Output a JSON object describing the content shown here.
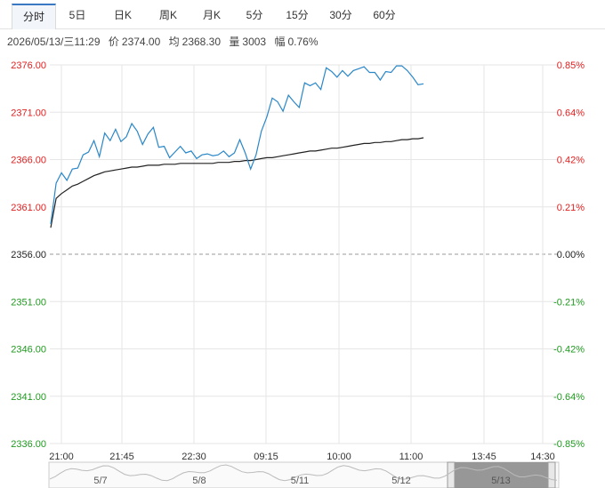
{
  "tabs": [
    {
      "label": "分时",
      "active": true
    },
    {
      "label": "5日",
      "active": false
    },
    {
      "label": "日K",
      "active": false
    },
    {
      "label": "周K",
      "active": false
    },
    {
      "label": "月K",
      "active": false
    },
    {
      "label": "5分",
      "active": false
    },
    {
      "label": "15分",
      "active": false
    },
    {
      "label": "30分",
      "active": false
    },
    {
      "label": "60分",
      "active": false
    }
  ],
  "info": {
    "datetime": "2026/05/13/三11:29",
    "price_label": "价",
    "price": "2374.00",
    "avg_label": "均",
    "avg": "2368.30",
    "vol_label": "量",
    "vol": "3003",
    "change_label": "幅",
    "change": "0.76%"
  },
  "colors": {
    "price_line": "#2a87c8",
    "avg_line": "#222222",
    "up": "#e02020",
    "down": "#1f9a1f",
    "base": "#222222",
    "grid": "#e6e6e6",
    "nav_fill": "#8c8c8c"
  },
  "chart_data": {
    "type": "line",
    "base_price": 2356,
    "ylim": [
      2336,
      2376
    ],
    "y_ticks_left": [
      "2376.00",
      "2371.00",
      "2366.00",
      "2361.00",
      "2356.00",
      "2351.00",
      "2346.00",
      "2341.00",
      "2336.00"
    ],
    "y_ticks_right": [
      "0.85%",
      "0.64%",
      "0.42%",
      "0.21%",
      "0.00%",
      "-0.21%",
      "-0.42%",
      "-0.64%",
      "-0.85%"
    ],
    "x_ticks": [
      "21:00",
      "21:45",
      "22:30",
      "09:15",
      "10:00",
      "11:00",
      "13:45",
      "14:30"
    ],
    "price_series": [
      2359.2,
      2363.5,
      2364.6,
      2363.8,
      2365.0,
      2365.1,
      2366.5,
      2366.8,
      2368.0,
      2366.3,
      2368.8,
      2368.0,
      2369.2,
      2367.9,
      2368.4,
      2369.8,
      2369.0,
      2367.6,
      2368.7,
      2369.4,
      2367.3,
      2367.4,
      2366.2,
      2366.8,
      2367.4,
      2366.7,
      2366.9,
      2366.1,
      2366.5,
      2366.6,
      2366.4,
      2366.5,
      2366.9,
      2366.3,
      2366.7,
      2368.1,
      2366.7,
      2365.0,
      2366.5,
      2369.0,
      2370.5,
      2372.5,
      2372.1,
      2371.1,
      2372.8,
      2372.1,
      2371.5,
      2374.1,
      2373.8,
      2374.1,
      2373.4,
      2375.7,
      2375.3,
      2374.7,
      2375.4,
      2374.8,
      2375.4,
      2375.6,
      2375.8,
      2375.2,
      2375.2,
      2374.4,
      2375.3,
      2375.2,
      2375.9,
      2375.9,
      2375.4,
      2374.7,
      2373.9,
      2374.0
    ],
    "avg_series": [
      2358.8,
      2361.9,
      2362.4,
      2362.8,
      2363.2,
      2363.4,
      2363.7,
      2364.0,
      2364.3,
      2364.5,
      2364.7,
      2364.8,
      2364.9,
      2365.0,
      2365.1,
      2365.2,
      2365.2,
      2365.3,
      2365.4,
      2365.4,
      2365.4,
      2365.5,
      2365.5,
      2365.5,
      2365.6,
      2365.6,
      2365.6,
      2365.6,
      2365.6,
      2365.6,
      2365.6,
      2365.7,
      2365.7,
      2365.7,
      2365.8,
      2365.8,
      2365.9,
      2365.9,
      2366.0,
      2366.1,
      2366.2,
      2366.2,
      2366.3,
      2366.4,
      2366.5,
      2366.6,
      2366.7,
      2366.8,
      2366.9,
      2366.9,
      2367.0,
      2367.1,
      2367.2,
      2367.2,
      2367.3,
      2367.4,
      2367.5,
      2367.6,
      2367.7,
      2367.7,
      2367.8,
      2367.8,
      2367.9,
      2367.9,
      2368.0,
      2368.1,
      2368.1,
      2368.2,
      2368.2,
      2368.3
    ],
    "navigator_labels": [
      "5/7",
      "5/8",
      "5/11",
      "5/12",
      "5/13"
    ]
  }
}
